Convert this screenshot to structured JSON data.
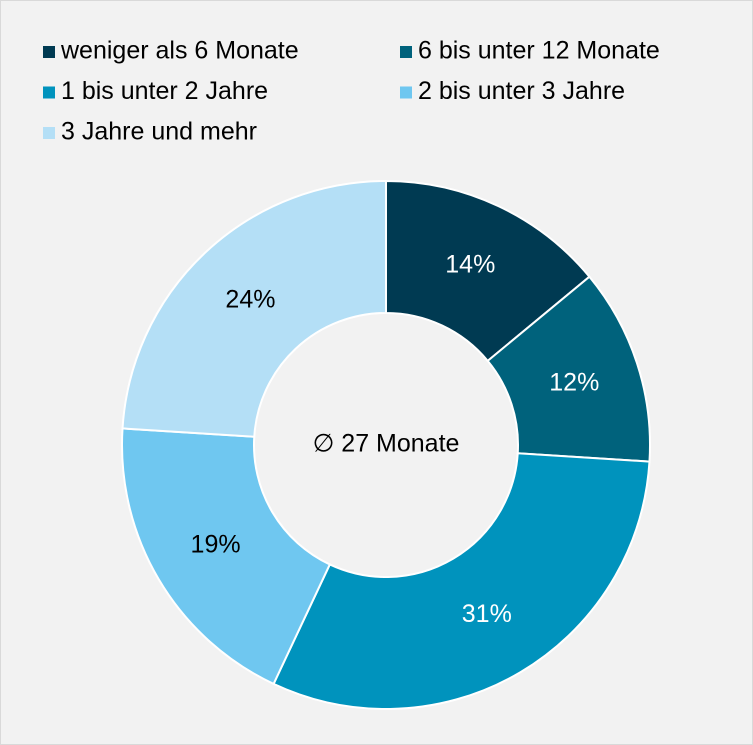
{
  "chart_data": {
    "type": "donut",
    "categories": [
      "weniger als 6 Monate",
      "6 bis unter 12 Monate",
      "1 bis unter 2 Jahre",
      "2 bis unter 3 Jahre",
      "3 Jahre und mehr"
    ],
    "values": [
      14,
      12,
      31,
      19,
      24
    ],
    "value_labels": [
      "14%",
      "12%",
      "31%",
      "19%",
      "24%"
    ],
    "colors": [
      "#003a52",
      "#00627c",
      "#0093bd",
      "#6fc7f0",
      "#b4dff6"
    ],
    "label_colors": [
      "#ffffff",
      "#ffffff",
      "#ffffff",
      "#000000",
      "#000000"
    ],
    "center_label": "∅ 27 Monate",
    "legend": "top"
  }
}
